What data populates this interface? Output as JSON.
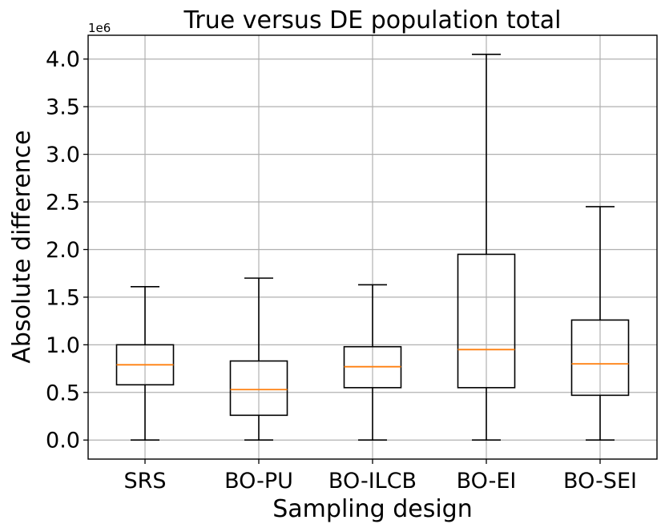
{
  "chart_data": {
    "type": "boxplot",
    "title": "True versus DE population total",
    "xlabel": "Sampling design",
    "ylabel": "Absolute difference",
    "y_offset_label": "1e6",
    "ylim": [
      -0.2,
      4.25
    ],
    "yticks": [
      0.0,
      0.5,
      1.0,
      1.5,
      2.0,
      2.5,
      3.0,
      3.5,
      4.0
    ],
    "ytick_labels": [
      "0.0",
      "0.5",
      "1.0",
      "1.5",
      "2.0",
      "2.5",
      "3.0",
      "3.5",
      "4.0"
    ],
    "grid": true,
    "categories": [
      "SRS",
      "BO-PU",
      "BO-ILCB",
      "BO-EI",
      "BO-SEI"
    ],
    "boxes": [
      {
        "whisker_low": 0.0,
        "q1": 0.58,
        "median": 0.79,
        "q3": 1.0,
        "whisker_high": 1.61
      },
      {
        "whisker_low": 0.0,
        "q1": 0.26,
        "median": 0.53,
        "q3": 0.83,
        "whisker_high": 1.7
      },
      {
        "whisker_low": 0.0,
        "q1": 0.55,
        "median": 0.77,
        "q3": 0.98,
        "whisker_high": 1.63
      },
      {
        "whisker_low": 0.0,
        "q1": 0.55,
        "median": 0.95,
        "q3": 1.95,
        "whisker_high": 4.05
      },
      {
        "whisker_low": 0.0,
        "q1": 0.47,
        "median": 0.8,
        "q3": 1.26,
        "whisker_high": 2.45
      }
    ],
    "colors": {
      "box": "#000000",
      "median": "#ff7f0e",
      "grid": "#b0b0b0"
    }
  }
}
